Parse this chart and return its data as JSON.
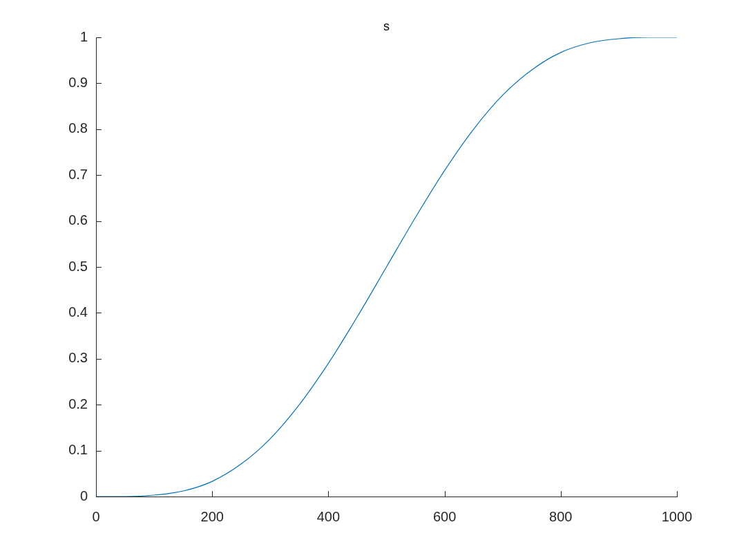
{
  "chart_data": {
    "type": "line",
    "title": "s",
    "x": [
      0,
      50,
      100,
      150,
      200,
      250,
      300,
      350,
      400,
      450,
      500,
      550,
      600,
      650,
      700,
      750,
      800,
      850,
      900,
      950,
      1000
    ],
    "series": [
      {
        "color": "#0072bd",
        "values": [
          0,
          0,
          0.003,
          0.012,
          0.033,
          0.071,
          0.126,
          0.2,
          0.29,
          0.392,
          0.5,
          0.608,
          0.71,
          0.8,
          0.874,
          0.929,
          0.967,
          0.988,
          0.997,
          1,
          1
        ]
      }
    ],
    "xlim": [
      0,
      1000
    ],
    "ylim": [
      0,
      1
    ],
    "xticks": [
      0,
      200,
      400,
      600,
      800,
      1000
    ],
    "yticks": [
      0,
      0.1,
      0.2,
      0.3,
      0.4,
      0.5,
      0.6,
      0.7,
      0.8,
      0.9,
      1
    ]
  }
}
